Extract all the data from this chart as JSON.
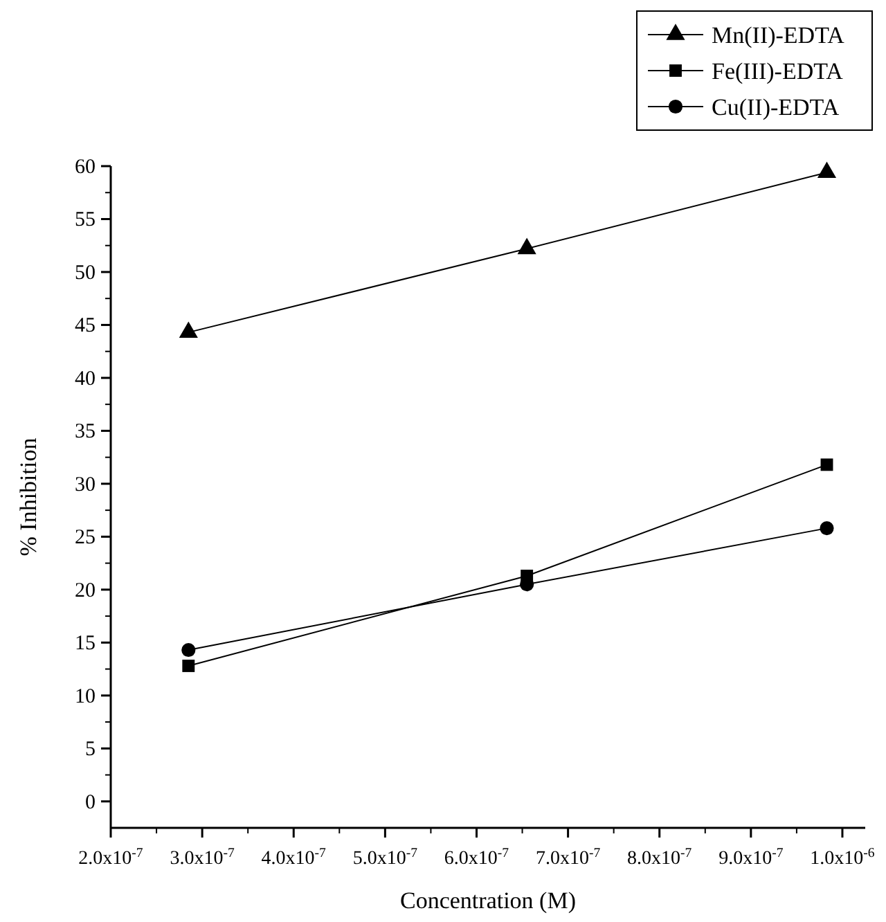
{
  "chart_data": {
    "type": "line",
    "xlabel": "Concentration (M)",
    "ylabel": "% Inhibition",
    "xlim": [
      2e-07,
      1.025e-06
    ],
    "ylim": [
      -2.5,
      60
    ],
    "xticks": [
      {
        "value": 2e-07,
        "label": "2.0x10$^{-7}$"
      },
      {
        "value": 3e-07,
        "label": "3.0x10$^{-7}$"
      },
      {
        "value": 4e-07,
        "label": "4.0x10$^{-7}$"
      },
      {
        "value": 5e-07,
        "label": "5.0x10$^{-7}$"
      },
      {
        "value": 6e-07,
        "label": "6.0x10$^{-7}$"
      },
      {
        "value": 7e-07,
        "label": "7.0x10$^{-7}$"
      },
      {
        "value": 8e-07,
        "label": "8.0x10$^{-7}$"
      },
      {
        "value": 9e-07,
        "label": "9.0x10$^{-7}$"
      },
      {
        "value": 1e-06,
        "label": "1.0x10$^{-6}$"
      }
    ],
    "yticks": [
      0,
      5,
      10,
      15,
      20,
      25,
      30,
      35,
      40,
      45,
      50,
      55,
      60
    ],
    "x": [
      2.85e-07,
      6.55e-07,
      9.83e-07
    ],
    "legend": "top right",
    "grid": false,
    "line_style": "solid",
    "series": [
      {
        "name": "Mn(II)-EDTA",
        "color": "#000000",
        "marker": "triangle",
        "values": [
          44.3,
          52.2,
          59.4
        ]
      },
      {
        "name": "Fe(III)-EDTA",
        "color": "#000000",
        "marker": "square",
        "values": [
          12.8,
          21.3,
          31.8
        ]
      },
      {
        "name": "Cu(II)-EDTA",
        "color": "#000000",
        "marker": "circle",
        "values": [
          14.3,
          20.5,
          25.8
        ]
      }
    ]
  }
}
